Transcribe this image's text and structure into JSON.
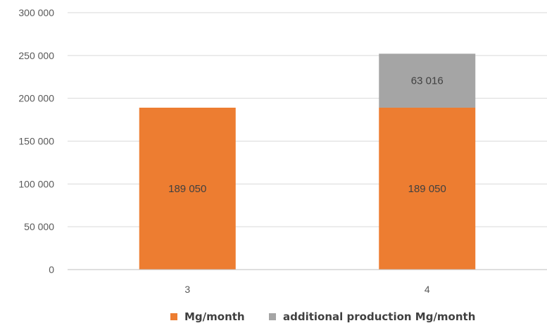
{
  "chart_data": {
    "type": "bar",
    "stacked": true,
    "title": "",
    "xlabel": "",
    "ylabel": "",
    "categories": [
      "3",
      "4"
    ],
    "ylim": [
      0,
      300000
    ],
    "yticks": [
      0,
      50000,
      100000,
      150000,
      200000,
      250000,
      300000
    ],
    "ytick_labels": [
      "0",
      "50 000",
      "100 000",
      "150 000",
      "200 000",
      "250 000",
      "300 000"
    ],
    "grid": true,
    "legend_position": "bottom",
    "series": [
      {
        "name": "Mg/month",
        "color": "#ED7D31",
        "values": [
          189050,
          189050
        ],
        "labels": [
          "189 050",
          "189 050"
        ]
      },
      {
        "name": "additional production  Mg/month",
        "color": "#A5A5A5",
        "values": [
          0,
          63016
        ],
        "labels": [
          "",
          "63 016"
        ]
      }
    ]
  }
}
